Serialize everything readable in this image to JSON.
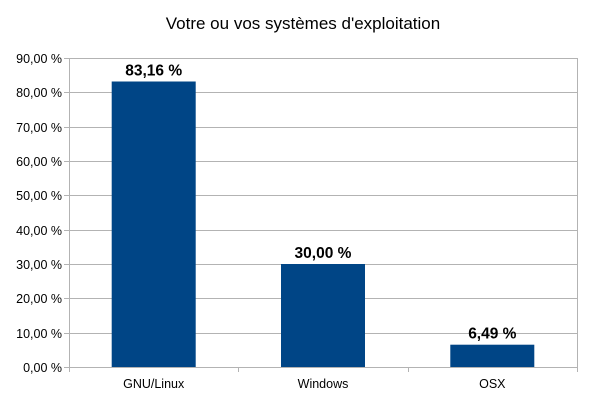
{
  "chart_data": {
    "type": "bar",
    "title": "Votre ou vos systèmes d'exploitation",
    "categories": [
      "GNU/Linux",
      "Windows",
      "OSX"
    ],
    "values": [
      83.16,
      30.0,
      6.49
    ],
    "data_labels": [
      "83,16 %",
      "30,00 %",
      "6,49 %"
    ],
    "ylim": [
      0,
      90
    ],
    "yticks": [
      0,
      10,
      20,
      30,
      40,
      50,
      60,
      70,
      80,
      90
    ],
    "ytick_labels": [
      "0,00 %",
      "10,00 %",
      "20,00 %",
      "30,00 %",
      "40,00 %",
      "50,00 %",
      "60,00 %",
      "70,00 %",
      "80,00 %",
      "90,00 %"
    ],
    "xlabel": "",
    "ylabel": "",
    "grid": true,
    "legend": "none",
    "bar_color": "#004586",
    "grid_color": "#b3b3b3"
  }
}
